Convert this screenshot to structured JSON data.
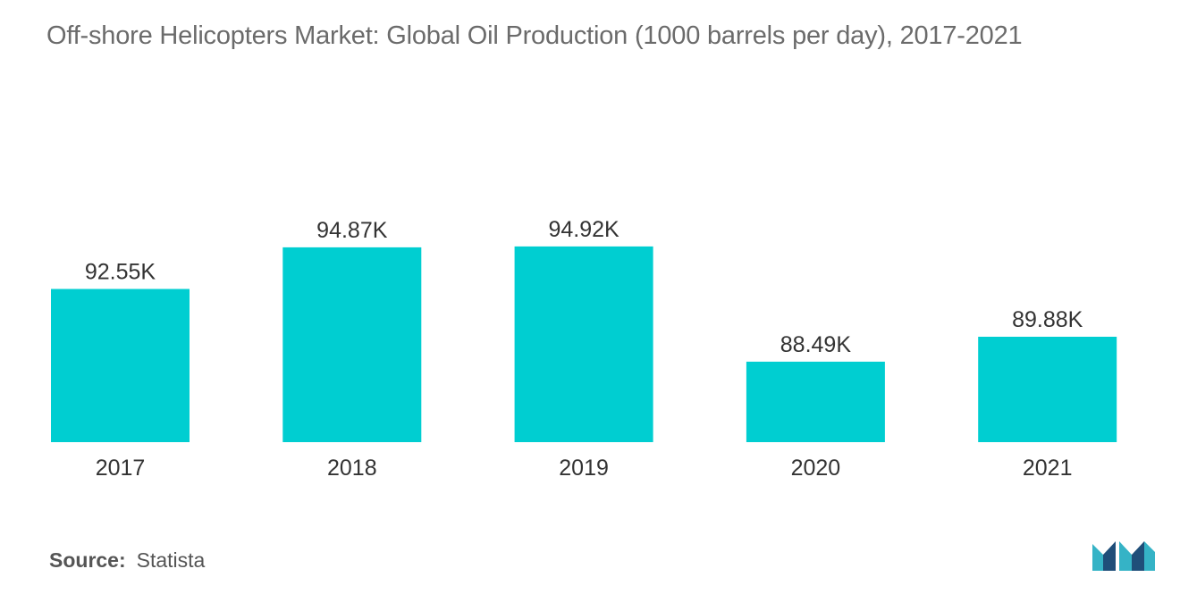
{
  "title": "Off-shore Helicopters Market: Global Oil Production (1000 barrels per day), 2017-2021",
  "source": {
    "label": "Source:",
    "value": "Statista"
  },
  "colors": {
    "bar": "#00CED1",
    "logo_dark": "#1f4e79",
    "logo_light": "#35b3c6"
  },
  "chart_data": {
    "type": "bar",
    "title": "Off-shore Helicopters Market: Global Oil Production (1000 barrels per day), 2017-2021",
    "categories": [
      "2017",
      "2018",
      "2019",
      "2020",
      "2021"
    ],
    "values": [
      92.55,
      94.87,
      94.92,
      88.49,
      89.88
    ],
    "data_labels": [
      "92.55K",
      "94.87K",
      "94.92K",
      "88.49K",
      "89.88K"
    ],
    "ylim": [
      0,
      100
    ],
    "grid": false,
    "legend": "none"
  }
}
